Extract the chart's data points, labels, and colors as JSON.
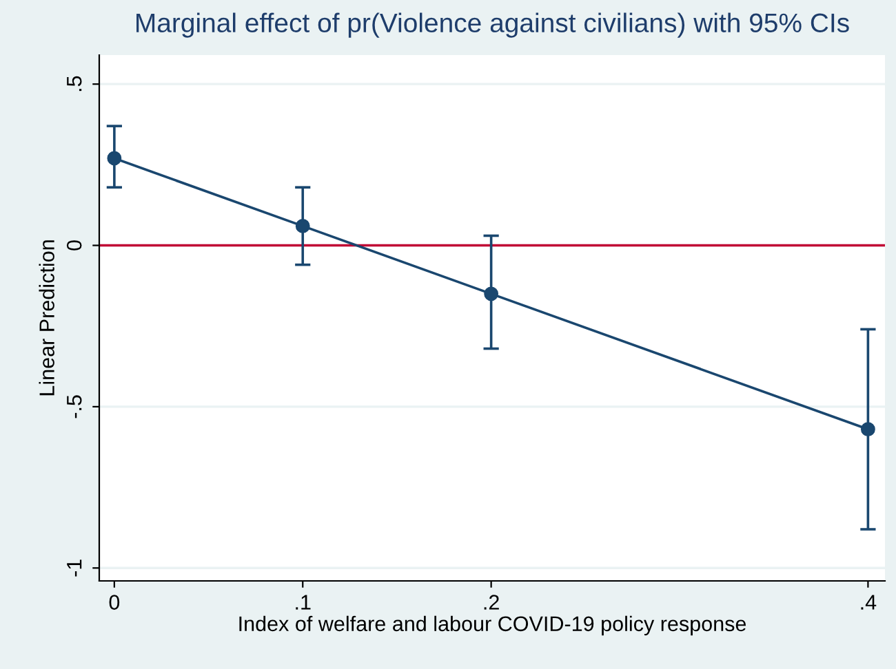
{
  "chart_data": {
    "type": "line",
    "title": "Marginal effect of pr(Violence against civilians) with 95% CIs",
    "xlabel": "Index of welfare and labour COVID-19 policy response",
    "ylabel": "Linear Prediction",
    "x": [
      0,
      0.1,
      0.2,
      0.4
    ],
    "series": [
      {
        "color": "#1a476f",
        "values": [
          0.27,
          0.06,
          -0.15,
          -0.57
        ],
        "errors": [
          [
            0.18,
            0.37
          ],
          [
            -0.06,
            0.18
          ],
          [
            -0.32,
            0.03
          ],
          [
            -0.88,
            -0.26
          ]
        ]
      }
    ],
    "marker": "circle",
    "line_style": "solid",
    "xlim": [
      -0.008,
      0.409
    ],
    "ylim": [
      -1.04,
      0.59
    ],
    "xticks": [
      {
        "value": 0,
        "label": "0"
      },
      {
        "value": 0.1,
        "label": ".1"
      },
      {
        "value": 0.2,
        "label": ".2"
      },
      {
        "value": 0.4,
        "label": ".4"
      }
    ],
    "yticks": [
      {
        "value": -1,
        "label": "-1"
      },
      {
        "value": -0.5,
        "label": "-.5"
      },
      {
        "value": 0,
        "label": "0"
      },
      {
        "value": 0.5,
        "label": ".5"
      }
    ],
    "ref_lines": [
      {
        "axis": "y",
        "value": 0,
        "color": "#c10534"
      }
    ],
    "grid": "y",
    "legend": false
  }
}
